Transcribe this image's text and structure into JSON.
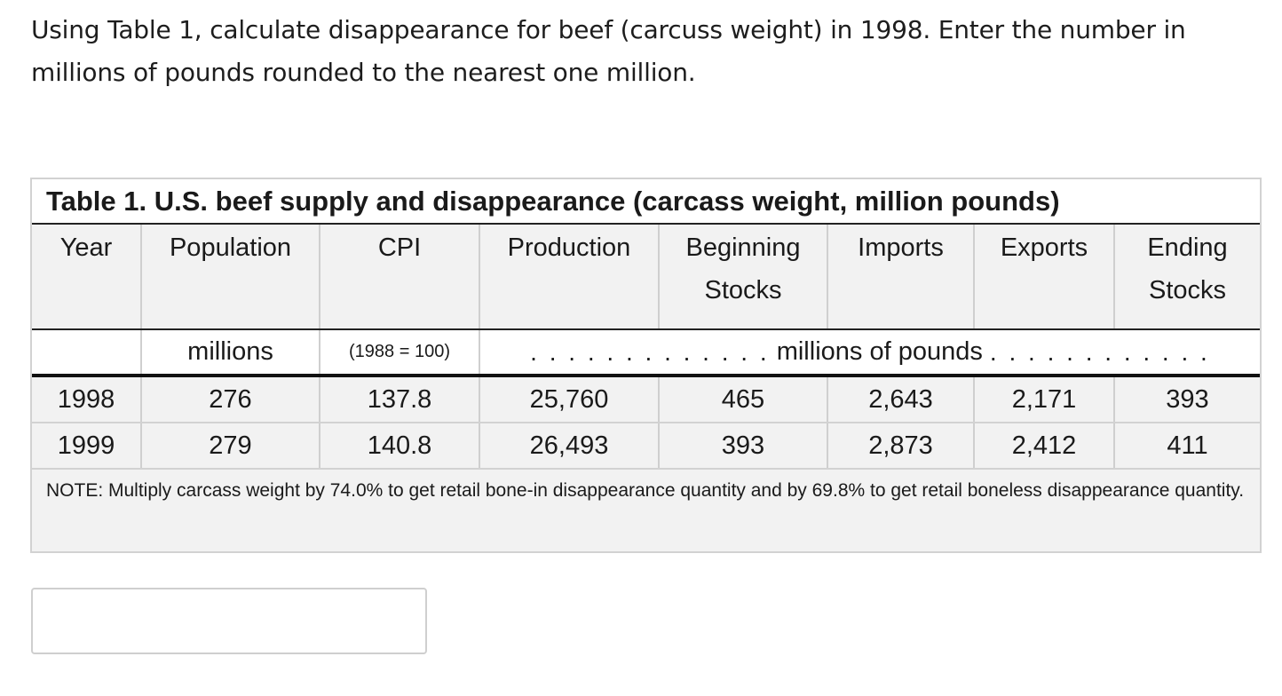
{
  "question": "Using Table 1, calculate disappearance for beef (carcuss weight) in 1998. Enter the number in millions of pounds rounded to the nearest one million.",
  "table": {
    "title": "Table 1. U.S. beef supply and disappearance (carcass weight, million pounds)",
    "headers": [
      "Year",
      "Population",
      "CPI",
      "Production",
      "Beginning Stocks",
      "Imports",
      "Exports",
      "Ending Stocks"
    ],
    "units": {
      "population": "millions",
      "cpi": "(1988 = 100)",
      "quantities": "millions of pounds",
      "dots_left": ". . . . . . . . . . . . .",
      "dots_right": ". . . . . . . . . . . ."
    },
    "rows": [
      [
        "1998",
        "276",
        "137.8",
        "25,760",
        "465",
        "2,643",
        "2,171",
        "393"
      ],
      [
        "1999",
        "279",
        "140.8",
        "26,493",
        "393",
        "2,873",
        "2,412",
        "411"
      ]
    ],
    "note": "NOTE: Multiply carcass weight by 74.0% to get retail bone-in disappearance quantity and by 69.8% to get retail boneless disappearance quantity."
  },
  "answer": {
    "value": "",
    "placeholder": ""
  }
}
